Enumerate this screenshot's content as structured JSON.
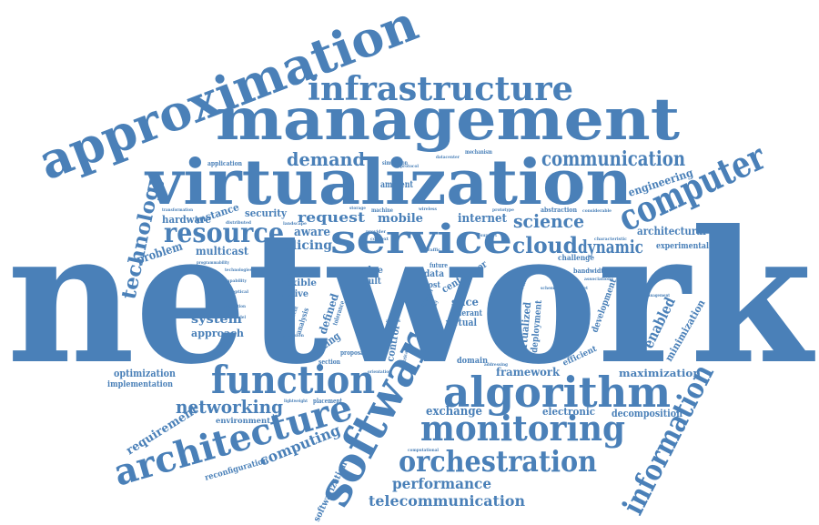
{
  "cloud": {
    "color": "#4a80b8",
    "words": {
      "network": "network",
      "virtualization": "virtualization",
      "management": "management",
      "approximation": "approximation",
      "software": "software",
      "infrastructure": "infrastructure",
      "service": "service",
      "function": "function",
      "algorithm": "algorithm",
      "architecture": "architecture",
      "monitoring": "monitoring",
      "orchestration": "orchestration",
      "computer": "computer",
      "information": "information",
      "communication": "communication",
      "resource": "resource",
      "technology": "technology",
      "cloud": "cloud",
      "demand": "demand",
      "science": "science",
      "dynamic": "dynamic",
      "networking": "networking",
      "telecommunication": "telecommunication",
      "performance": "performance",
      "computing": "computing",
      "request": "request",
      "mobile": "mobile",
      "internet": "internet",
      "slicing": "slicing",
      "aware": "aware",
      "hardware": "hardware",
      "instance": "instance",
      "security": "security",
      "multicast": "multicast",
      "problem": "problem",
      "system": "system",
      "approach": "approach",
      "optimization": "optimization",
      "implementation": "implementation",
      "requirement": "requirement",
      "environment": "environment",
      "reconfiguration": "reconfiguration",
      "softwarization": "softwarization",
      "exchange": "exchange",
      "electronic": "electronic",
      "decomposition": "decomposition",
      "maximization": "maximization",
      "framework": "framework",
      "enabled": "enabled",
      "minimization": "minimization",
      "development": "development",
      "deployment": "deployment",
      "virtualized": "virtualized",
      "architectural": "architectural",
      "experimental": "experimental",
      "engineering": "engineering",
      "challenge": "challenge",
      "bandwidth": "bandwidth",
      "flexible": "flexible",
      "active": "active",
      "defined": "defined",
      "routing": "routing",
      "edge": "edge",
      "fault": "fault",
      "data": "data",
      "cost": "cost",
      "center": "center",
      "slice": "slice",
      "virtual": "virtual",
      "control": "control",
      "domain": "domain",
      "tolerant": "tolerant",
      "efficient": "efficient",
      "chain": "chain",
      "paper": "paper",
      "future": "future",
      "ambient": "ambient",
      "application": "application",
      "analysis": "analysis",
      "machine": "machine",
      "abstraction": "abstraction",
      "mechanism": "mechanism",
      "simulation": "simulation",
      "placement": "placement",
      "lightweight": "lightweight",
      "section": "section",
      "proposal": "proposal",
      "design": "design",
      "technologies": "technologies",
      "management_small": "management",
      "computational": "computational",
      "distributed": "distributed",
      "landscape": "landscape",
      "provider": "provider",
      "context": "context",
      "transformation": "transformation",
      "programmability": "programmability",
      "precision": "precision",
      "different": "different",
      "special": "special",
      "delay": "delay",
      "heuristic": "heuristic",
      "associations": "associations",
      "traffic": "traffic",
      "orientation": "orientation",
      "electrical": "electrical",
      "addressing": "addressing",
      "prototype": "prototype",
      "considerable": "considerable",
      "characteristic": "characteristic",
      "datacenter": "datacenter",
      "evaluation": "evaluation",
      "tolerance": "tolerance",
      "capability": "capability",
      "support": "support",
      "storage": "storage",
      "wireless": "wireless",
      "optical": "optical",
      "packet": "packet",
      "protocol": "protocol",
      "scheme": "scheme",
      "model": "model",
      "access": "access"
    }
  }
}
